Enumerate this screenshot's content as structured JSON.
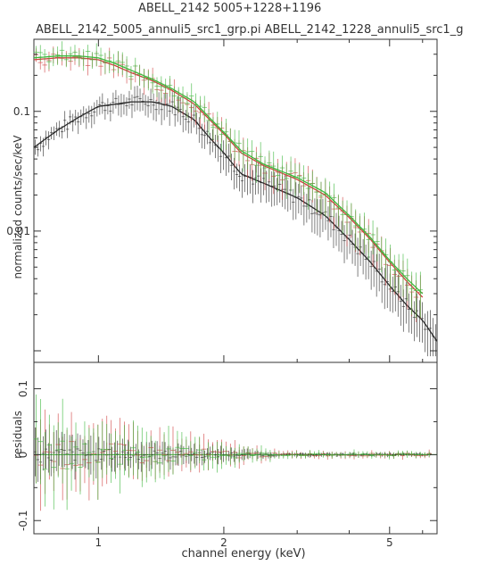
{
  "chart_data": [
    {
      "type": "line",
      "title": "ABELL_2142 5005+1228+1196",
      "subtitle": "ABELL_2142_5005_annuli5_src1_grp.pi  ABELL_2142_1228_annuli5_src1_g",
      "ylabel": "normalized counts/sec/keV",
      "xlog": true,
      "ylog": true,
      "xlim": [
        0.7,
        6.5
      ],
      "ylim": [
        0.0008,
        0.4
      ],
      "x_ticks": [
        1,
        2,
        5
      ],
      "y_ticks": [
        0.01,
        0.1
      ],
      "y_tick_labels": [
        "0.01",
        "0.1"
      ],
      "series": [
        {
          "color": "#2a2a2a",
          "x": [
            0.7,
            0.8,
            0.9,
            1.0,
            1.1,
            1.2,
            1.35,
            1.5,
            1.7,
            1.85,
            2.0,
            2.2,
            2.5,
            3.0,
            3.5,
            4.0,
            4.5,
            5.0,
            5.5,
            6.0,
            6.5
          ],
          "y": [
            0.05,
            0.07,
            0.09,
            0.11,
            0.115,
            0.12,
            0.12,
            0.11,
            0.085,
            0.06,
            0.045,
            0.03,
            0.025,
            0.019,
            0.0135,
            0.0085,
            0.0055,
            0.0035,
            0.0024,
            0.0018,
            0.0012
          ]
        },
        {
          "color": "#d04040",
          "x": [
            0.7,
            0.8,
            0.9,
            1.0,
            1.1,
            1.2,
            1.35,
            1.5,
            1.7,
            1.85,
            2.0,
            2.2,
            2.5,
            3.0,
            3.5,
            4.0,
            4.5,
            5.0,
            5.5,
            6.0
          ],
          "y": [
            0.27,
            0.28,
            0.28,
            0.27,
            0.24,
            0.21,
            0.18,
            0.15,
            0.115,
            0.085,
            0.065,
            0.045,
            0.035,
            0.027,
            0.02,
            0.013,
            0.0085,
            0.0055,
            0.0038,
            0.0028
          ]
        },
        {
          "color": "#3cb83c",
          "x": [
            0.7,
            0.8,
            0.9,
            1.0,
            1.1,
            1.2,
            1.35,
            1.5,
            1.7,
            1.85,
            2.0,
            2.2,
            2.5,
            3.0,
            3.5,
            4.0,
            4.5,
            5.0,
            5.5,
            6.0
          ],
          "y": [
            0.28,
            0.29,
            0.29,
            0.28,
            0.25,
            0.22,
            0.185,
            0.155,
            0.12,
            0.088,
            0.067,
            0.047,
            0.036,
            0.028,
            0.021,
            0.0135,
            0.0088,
            0.0057,
            0.004,
            0.003
          ]
        }
      ]
    },
    {
      "type": "scatter",
      "ylabel": "residuals",
      "xlabel": "channel energy (keV)",
      "xlog": true,
      "xlim": [
        0.7,
        6.5
      ],
      "ylim": [
        -0.12,
        0.14
      ],
      "x_ticks": [
        1,
        2,
        5
      ],
      "x_tick_labels": [
        "1",
        "2",
        "5"
      ],
      "y_ticks": [
        -0.1,
        0,
        0.1
      ],
      "y_tick_labels": [
        "-0.1",
        "0",
        "0.1"
      ],
      "zero_line": 0
    }
  ]
}
